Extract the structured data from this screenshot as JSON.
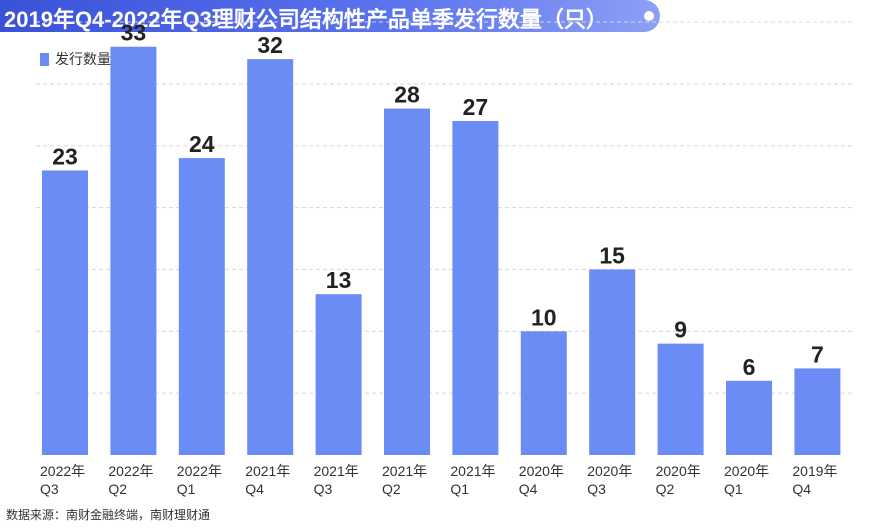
{
  "title": "2019年Q4-2022年Q3理财公司结构性产品单季发行数量（只）",
  "source": "数据来源：南财金融终端，南财理财通",
  "colors": {
    "bar": "#6b8cf5",
    "banner": "#4a63e6",
    "grid": "#d8d8d8",
    "text": "#222222"
  },
  "chart_data": {
    "type": "bar",
    "categories": [
      [
        "2022年",
        "Q3"
      ],
      [
        "2022年",
        "Q2"
      ],
      [
        "2022年",
        "Q1"
      ],
      [
        "2021年",
        "Q4"
      ],
      [
        "2021年",
        "Q3"
      ],
      [
        "2021年",
        "Q2"
      ],
      [
        "2021年",
        "Q1"
      ],
      [
        "2020年",
        "Q4"
      ],
      [
        "2020年",
        "Q3"
      ],
      [
        "2020年",
        "Q2"
      ],
      [
        "2020年",
        "Q1"
      ],
      [
        "2019年",
        "Q4"
      ]
    ],
    "series": [
      {
        "name": "发行数量（只）",
        "values": [
          23,
          33,
          24,
          32,
          13,
          28,
          27,
          10,
          15,
          9,
          6,
          7
        ]
      }
    ],
    "ylim": [
      0,
      35
    ],
    "grid": true,
    "legend_position": "top-left",
    "data_labels": true
  }
}
